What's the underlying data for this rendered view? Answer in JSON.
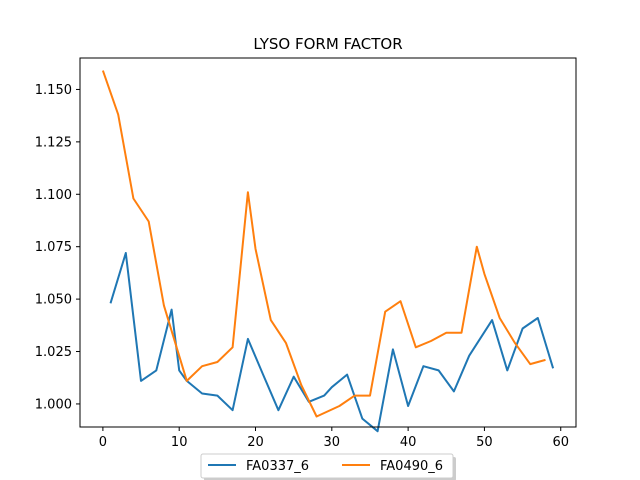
{
  "chart_data": {
    "type": "line",
    "title": "LYSO FORM FACTOR",
    "xlabel": "",
    "ylabel": "",
    "xlim": [
      -3,
      62
    ],
    "ylim": [
      0.989,
      1.165
    ],
    "xticks": [
      0,
      10,
      20,
      30,
      40,
      50,
      60
    ],
    "xtick_labels": [
      "0",
      "10",
      "20",
      "30",
      "40",
      "50",
      "60"
    ],
    "yticks": [
      1.0,
      1.025,
      1.05,
      1.075,
      1.1,
      1.125,
      1.15
    ],
    "ytick_labels": [
      "1.000",
      "1.025",
      "1.050",
      "1.075",
      "1.100",
      "1.125",
      "1.150"
    ],
    "grid": false,
    "legend_position": "bottom-center",
    "series": [
      {
        "name": "FA0337_6",
        "color": "#1f77b4",
        "x": [
          1,
          3,
          5,
          7,
          9,
          10,
          11,
          13,
          15,
          17,
          19,
          21,
          23,
          25,
          27,
          29,
          30,
          32,
          34,
          36,
          38,
          40,
          42,
          44,
          46,
          48,
          51,
          53,
          55,
          57,
          59
        ],
        "y": [
          1.048,
          1.072,
          1.011,
          1.016,
          1.045,
          1.016,
          1.011,
          1.005,
          1.004,
          0.997,
          1.031,
          1.014,
          0.997,
          1.013,
          1.001,
          1.004,
          1.008,
          1.014,
          0.993,
          0.987,
          1.026,
          0.999,
          1.018,
          1.016,
          1.006,
          1.023,
          1.04,
          1.016,
          1.036,
          1.041,
          1.017
        ]
      },
      {
        "name": "FA0490_6",
        "color": "#ff7f0e",
        "x": [
          0,
          2,
          4,
          6,
          8,
          11,
          13,
          15,
          17,
          19,
          20,
          22,
          24,
          26,
          28,
          31,
          33,
          35,
          37,
          39,
          41,
          43,
          45,
          47,
          49,
          50,
          52,
          54,
          56,
          58
        ],
        "y": [
          1.159,
          1.138,
          1.098,
          1.087,
          1.047,
          1.011,
          1.018,
          1.02,
          1.027,
          1.101,
          1.074,
          1.04,
          1.029,
          1.009,
          0.994,
          0.999,
          1.004,
          1.004,
          1.044,
          1.049,
          1.027,
          1.03,
          1.034,
          1.034,
          1.075,
          1.062,
          1.041,
          1.029,
          1.019,
          1.021
        ]
      }
    ]
  }
}
